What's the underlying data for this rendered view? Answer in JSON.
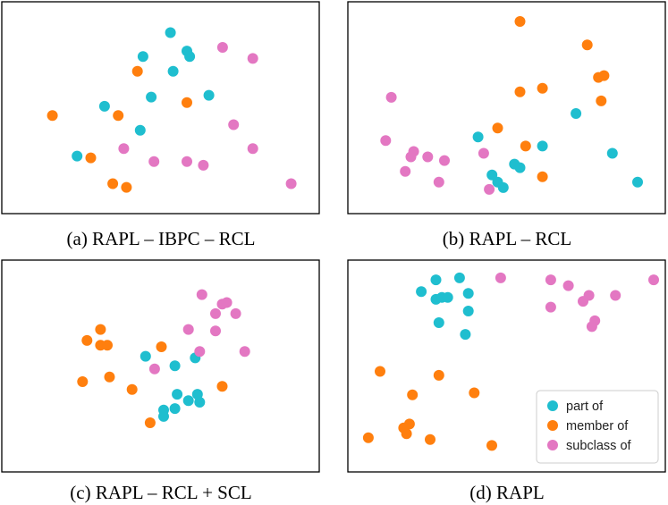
{
  "colors": {
    "part_of": "#1fbecf",
    "member_of": "#ff7f0e",
    "subclass_of": "#e377c2"
  },
  "legend": {
    "entries": [
      {
        "label": "part of",
        "color": "#1fbecf"
      },
      {
        "label": "member of",
        "color": "#ff7f0e"
      },
      {
        "label": "subclass of",
        "color": "#e377c2"
      }
    ]
  },
  "chart_data": [
    {
      "type": "scatter",
      "title": "(a) RAPL – IBPC – RCL",
      "xlim": [
        0,
        100
      ],
      "ylim": [
        0,
        100
      ],
      "series": [
        {
          "name": "part of",
          "color": "#1fbecf",
          "points": [
            [
              51,
              91
            ],
            [
              57,
              81
            ],
            [
              58,
              78
            ],
            [
              41,
              78
            ],
            [
              52,
              70
            ],
            [
              44,
              56
            ],
            [
              65,
              57
            ],
            [
              27,
              51
            ],
            [
              40,
              38
            ],
            [
              17,
              24
            ]
          ]
        },
        {
          "name": "member of",
          "color": "#ff7f0e",
          "points": [
            [
              39,
              70
            ],
            [
              57,
              53
            ],
            [
              32,
              46
            ],
            [
              8,
              46
            ],
            [
              22,
              23
            ],
            [
              30,
              9
            ],
            [
              35,
              7
            ]
          ]
        },
        {
          "name": "subclass of",
          "color": "#e377c2",
          "points": [
            [
              70,
              83
            ],
            [
              81,
              77
            ],
            [
              74,
              41
            ],
            [
              34,
              28
            ],
            [
              45,
              21
            ],
            [
              57,
              21
            ],
            [
              63,
              19
            ],
            [
              81,
              28
            ],
            [
              95,
              9
            ]
          ]
        }
      ]
    },
    {
      "type": "scatter",
      "title": "(b) RAPL – RCL",
      "xlim": [
        0,
        100
      ],
      "ylim": [
        0,
        100
      ],
      "series": [
        {
          "name": "part of",
          "color": "#1fbecf",
          "points": [
            [
              78,
              48
            ],
            [
              66,
              30
            ],
            [
              91,
              26
            ],
            [
              43,
              35
            ],
            [
              48,
              14
            ],
            [
              50,
              10
            ],
            [
              52,
              7
            ],
            [
              56,
              20
            ],
            [
              58,
              18
            ],
            [
              100,
              10
            ]
          ]
        },
        {
          "name": "member of",
          "color": "#ff7f0e",
          "points": [
            [
              58,
              99
            ],
            [
              82,
              86
            ],
            [
              86,
              68
            ],
            [
              88,
              69
            ],
            [
              58,
              60
            ],
            [
              66,
              62
            ],
            [
              87,
              55
            ],
            [
              50,
              40
            ],
            [
              60,
              30
            ],
            [
              66,
              13
            ]
          ]
        },
        {
          "name": "subclass of",
          "color": "#e377c2",
          "points": [
            [
              12,
              57
            ],
            [
              10,
              33
            ],
            [
              20,
              27
            ],
            [
              19,
              24
            ],
            [
              25,
              24
            ],
            [
              31,
              22
            ],
            [
              17,
              16
            ],
            [
              29,
              10
            ],
            [
              45,
              26
            ],
            [
              47,
              6
            ]
          ]
        }
      ]
    },
    {
      "type": "scatter",
      "title": "(c) RAPL – RCL + SCL",
      "xlim": [
        0,
        100
      ],
      "ylim": [
        0,
        100
      ],
      "series": [
        {
          "name": "part of",
          "color": "#1fbecf",
          "points": [
            [
              42,
              55
            ],
            [
              55,
              49
            ],
            [
              64,
              54
            ],
            [
              56,
              31
            ],
            [
              65,
              31
            ],
            [
              61,
              27
            ],
            [
              66,
              26
            ],
            [
              55,
              22
            ],
            [
              50,
              21
            ],
            [
              50,
              17
            ]
          ]
        },
        {
          "name": "member of",
          "color": "#ff7f0e",
          "points": [
            [
              22,
              72
            ],
            [
              16,
              65
            ],
            [
              22,
              62
            ],
            [
              25,
              62
            ],
            [
              49,
              61
            ],
            [
              26,
              42
            ],
            [
              14,
              39
            ],
            [
              36,
              34
            ],
            [
              76,
              36
            ],
            [
              44,
              13
            ]
          ]
        },
        {
          "name": "subclass of",
          "color": "#e377c2",
          "points": [
            [
              67,
              94
            ],
            [
              76,
              88
            ],
            [
              78,
              89
            ],
            [
              73,
              82
            ],
            [
              82,
              82
            ],
            [
              61,
              72
            ],
            [
              73,
              71
            ],
            [
              86,
              58
            ],
            [
              66,
              58
            ],
            [
              46,
              47
            ]
          ]
        }
      ]
    },
    {
      "type": "scatter",
      "title": "(d) RAPL",
      "xlim": [
        0,
        100
      ],
      "ylim": [
        0,
        100
      ],
      "series": [
        {
          "name": "part of",
          "color": "#1fbecf",
          "points": [
            [
              26,
              94
            ],
            [
              34,
              95
            ],
            [
              21,
              88
            ],
            [
              26,
              84
            ],
            [
              28,
              85
            ],
            [
              30,
              85
            ],
            [
              37,
              87
            ],
            [
              37,
              78
            ],
            [
              27,
              72
            ],
            [
              36,
              66
            ]
          ]
        },
        {
          "name": "member of",
          "color": "#ff7f0e",
          "points": [
            [
              7,
              47
            ],
            [
              27,
              45
            ],
            [
              18,
              35
            ],
            [
              39,
              36
            ],
            [
              17,
              20
            ],
            [
              15,
              18
            ],
            [
              16,
              15
            ],
            [
              24,
              12
            ],
            [
              45,
              9
            ],
            [
              3,
              13
            ]
          ]
        },
        {
          "name": "subclass of",
          "color": "#e377c2",
          "points": [
            [
              48,
              95
            ],
            [
              65,
              94
            ],
            [
              71,
              91
            ],
            [
              78,
              86
            ],
            [
              87,
              86
            ],
            [
              76,
              83
            ],
            [
              65,
              80
            ],
            [
              80,
              73
            ],
            [
              79,
              70
            ],
            [
              100,
              94
            ]
          ]
        }
      ]
    }
  ]
}
